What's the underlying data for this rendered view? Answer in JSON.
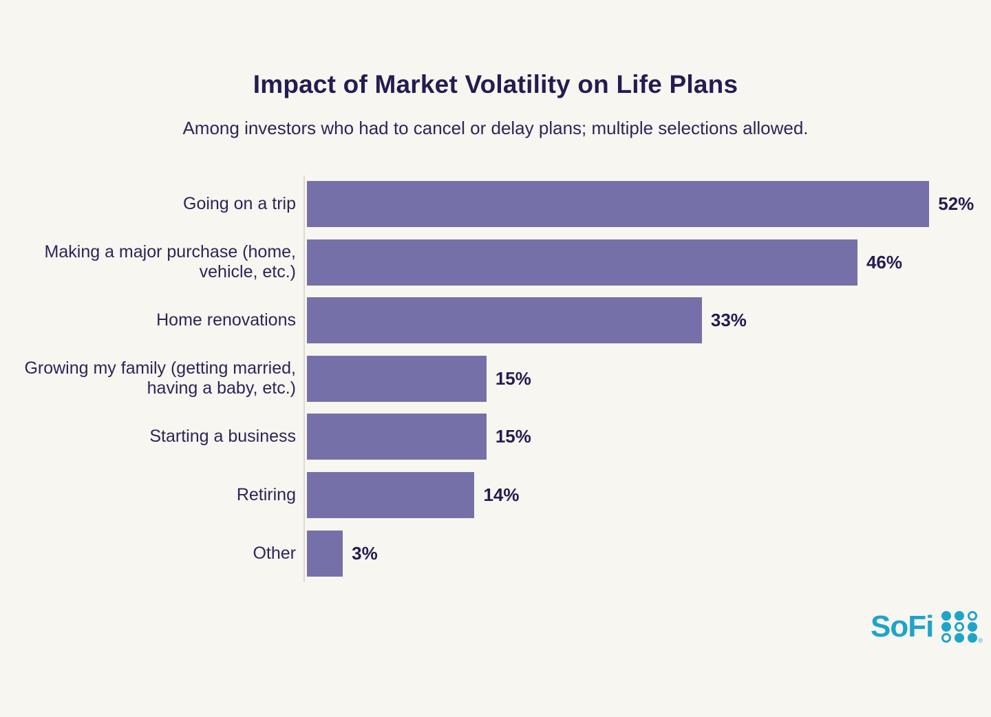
{
  "page": {
    "title": "Impact of Market Volatility on Life Plans",
    "subtitle": "Among investors who had to cancel or delay plans; multiple selections allowed."
  },
  "chart_data": {
    "type": "bar",
    "orientation": "horizontal",
    "title": "Impact of Market Volatility on Life Plans",
    "subtitle": "Among investors who had to cancel or delay plans; multiple selections allowed.",
    "categories": [
      "Going on a trip",
      "Making a major purchase (home, vehicle, etc.)",
      "Home renovations",
      "Growing my family (getting married, having a baby, etc.)",
      "Starting a business",
      "Retiring",
      "Other"
    ],
    "values": [
      52,
      46,
      33,
      15,
      15,
      14,
      3
    ],
    "value_labels": [
      "52%",
      "46%",
      "33%",
      "15%",
      "15%",
      "14%",
      "3%"
    ],
    "xlabel": "",
    "ylabel": "",
    "xlim": [
      0,
      55
    ],
    "grid": false,
    "legend": "none",
    "bar_color": "#7670A8",
    "label_color": "#2C2559",
    "value_color": "#241C52",
    "axis_color": "#DEDAD1",
    "background_color": "#F8F6F0",
    "title_color": "#241C52"
  },
  "logo": {
    "text": "SoFi",
    "color": "#1FA4C9",
    "trademark": "®",
    "grid_pattern": [
      [
        "filled",
        "filled",
        "outline"
      ],
      [
        "filled",
        "outline",
        "filled"
      ],
      [
        "outline",
        "filled",
        "filled"
      ]
    ]
  }
}
